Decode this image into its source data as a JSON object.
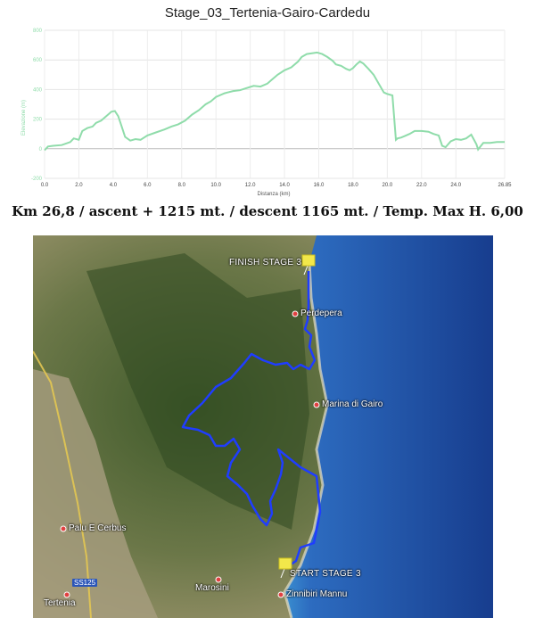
{
  "title": "Stage_03_Tertenia-Gairo-Cardedu",
  "stats_line": "Km 26,8 / ascent + 1215 mt. / descent 1165 mt. / Temp. Max  H. 6,00",
  "chart_data": {
    "type": "area",
    "xlabel": "Distanza (km)",
    "ylabel": "Elevazione (m)",
    "xlim": [
      0,
      26.85
    ],
    "ylim": [
      -200,
      800
    ],
    "x_ticks": [
      "0.0",
      "2.0",
      "4.0",
      "6.0",
      "8.0",
      "10.0",
      "12.0",
      "14.0",
      "16.0",
      "18.0",
      "20.0",
      "22.0",
      "24.0",
      "26.85"
    ],
    "x_tick_values": [
      0,
      2,
      4,
      6,
      8,
      10,
      12,
      14,
      16,
      18,
      20,
      22,
      24,
      26.85
    ],
    "y_ticks": [
      "-200",
      "0",
      "200",
      "400",
      "600",
      "800"
    ],
    "y_tick_values": [
      -200,
      0,
      200,
      400,
      600,
      800
    ],
    "grid": true,
    "line_color": "#8fdcaa",
    "x": [
      0,
      0.2,
      0.5,
      1.0,
      1.5,
      1.7,
      2.0,
      2.2,
      2.5,
      2.8,
      3.0,
      3.3,
      3.6,
      3.9,
      4.1,
      4.3,
      4.5,
      4.7,
      5.0,
      5.3,
      5.6,
      6.0,
      6.5,
      7.0,
      7.4,
      7.8,
      8.2,
      8.6,
      9.0,
      9.4,
      9.7,
      10.0,
      10.5,
      11.0,
      11.4,
      11.8,
      12.2,
      12.6,
      13.0,
      13.2,
      13.6,
      14.0,
      14.4,
      14.8,
      15.0,
      15.3,
      15.6,
      15.9,
      16.2,
      16.5,
      16.8,
      17.0,
      17.3,
      17.6,
      17.8,
      18.0,
      18.2,
      18.4,
      18.6,
      18.9,
      19.2,
      19.5,
      19.8,
      20.0,
      20.3,
      20.5,
      20.6,
      20.8,
      21.0,
      21.3,
      21.6,
      22.0,
      22.4,
      22.7,
      23.0,
      23.2,
      23.4,
      23.7,
      24.0,
      24.3,
      24.6,
      24.9,
      25.2,
      25.3,
      25.6,
      26.0,
      26.4,
      26.85
    ],
    "y": [
      -10,
      15,
      20,
      25,
      45,
      70,
      60,
      120,
      140,
      150,
      175,
      190,
      220,
      250,
      255,
      220,
      150,
      80,
      55,
      65,
      60,
      90,
      110,
      130,
      150,
      165,
      190,
      230,
      260,
      300,
      320,
      350,
      375,
      390,
      395,
      410,
      425,
      420,
      440,
      460,
      500,
      530,
      550,
      590,
      620,
      640,
      645,
      650,
      640,
      620,
      595,
      570,
      560,
      540,
      530,
      545,
      570,
      590,
      575,
      540,
      500,
      440,
      380,
      370,
      360,
      60,
      70,
      75,
      85,
      100,
      120,
      120,
      115,
      100,
      90,
      20,
      10,
      50,
      65,
      60,
      70,
      95,
      30,
      -5,
      40,
      40,
      45,
      45
    ]
  },
  "map": {
    "labels": {
      "finish": "FINISH STAGE 3",
      "perdepera": "Perdepera",
      "marina": "Marina di Gairo",
      "palu": "Palu E Cerbus",
      "start": "START STAGE 3",
      "marosini": "Marosini",
      "zinnibiri": "Zinnibiri Mannu",
      "tertenia": "Tertenia",
      "road": "SS125"
    },
    "route_color": "#1f3dff",
    "pin_color": "#f2e84a",
    "sea_color": "#1f4ea8",
    "land_color": "#5a6a3a"
  }
}
